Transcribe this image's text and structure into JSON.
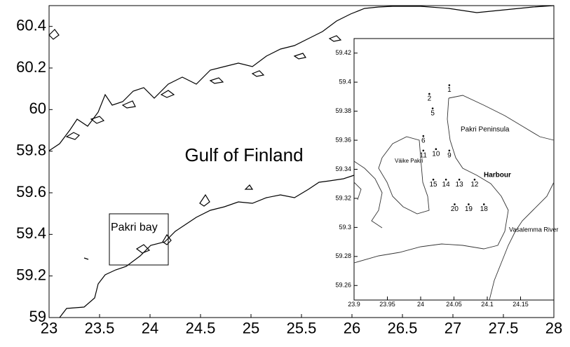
{
  "main_map": {
    "xlim": [
      23,
      28
    ],
    "ylim": [
      59,
      60.5
    ],
    "xticks": [
      23,
      23.5,
      24,
      24.5,
      25,
      25.5,
      26,
      26.5,
      27,
      27.5,
      28
    ],
    "yticks": [
      59,
      59.2,
      59.4,
      59.6,
      59.8,
      60,
      60.2,
      60.4
    ],
    "sea_label": "Gulf of Finland",
    "box_label": "Pakri bay"
  },
  "inset": {
    "xlim": [
      23.9,
      24.2
    ],
    "ylim": [
      59.25,
      59.43
    ],
    "xticks": [
      23.9,
      23.95,
      24,
      24.05,
      24.1,
      24.15
    ],
    "yticks": [
      59.26,
      59.28,
      59.3,
      59.32,
      59.34,
      59.36,
      59.38,
      59.4,
      59.42
    ],
    "place_labels": [
      "Pakri Peninsula",
      "Väike Pakri",
      "Harbour",
      "Vasalemma River"
    ],
    "stations": [
      {
        "label": "1",
        "lon": 24.043,
        "lat": 59.395
      },
      {
        "label": "2",
        "lon": 24.013,
        "lat": 59.389
      },
      {
        "label": "5",
        "lon": 24.018,
        "lat": 59.379
      },
      {
        "label": "6",
        "lon": 24.004,
        "lat": 59.36
      },
      {
        "label": "11",
        "lon": 24.004,
        "lat": 59.35
      },
      {
        "label": "10",
        "lon": 24.023,
        "lat": 59.351
      },
      {
        "label": "9",
        "lon": 24.043,
        "lat": 59.35
      },
      {
        "label": "15",
        "lon": 24.019,
        "lat": 59.33
      },
      {
        "label": "14",
        "lon": 24.038,
        "lat": 59.33
      },
      {
        "label": "13",
        "lon": 24.058,
        "lat": 59.33
      },
      {
        "label": "12",
        "lon": 24.081,
        "lat": 59.33
      },
      {
        "label": "20",
        "lon": 24.051,
        "lat": 59.313
      },
      {
        "label": "19",
        "lon": 24.072,
        "lat": 59.313
      },
      {
        "label": "18",
        "lon": 24.095,
        "lat": 59.313
      }
    ]
  }
}
